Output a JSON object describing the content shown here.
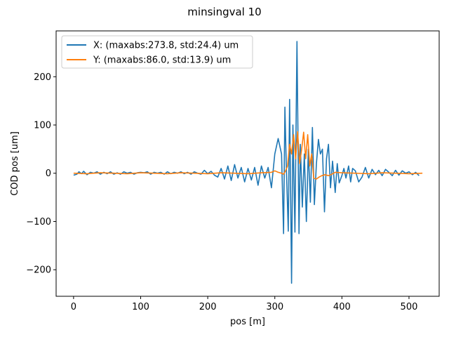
{
  "chart_data": {
    "type": "line",
    "title": "minsingval 10",
    "xlabel": "pos [m]",
    "ylabel": "COD pos [um]",
    "xlim": [
      -26,
      545
    ],
    "ylim": [
      -255,
      295
    ],
    "xticks": [
      0,
      100,
      200,
      300,
      400,
      500
    ],
    "yticks": [
      -200,
      -100,
      0,
      100,
      200
    ],
    "xtick_labels": [
      "0",
      "100",
      "200",
      "300",
      "400",
      "500"
    ],
    "ytick_labels": [
      "−200",
      "−100",
      "0",
      "100",
      "200"
    ],
    "grid": false,
    "legend_position": "upper-left",
    "series": [
      {
        "name": "X: (maxabs:273.8, std:24.4) um",
        "color": "#1f77b4",
        "x": [
          0,
          5,
          8,
          12,
          15,
          20,
          25,
          30,
          35,
          40,
          45,
          50,
          55,
          60,
          65,
          70,
          75,
          80,
          85,
          90,
          95,
          100,
          105,
          110,
          115,
          120,
          125,
          130,
          135,
          140,
          145,
          150,
          155,
          160,
          165,
          170,
          175,
          180,
          185,
          190,
          195,
          200,
          205,
          210,
          215,
          220,
          225,
          230,
          235,
          240,
          245,
          250,
          255,
          260,
          265,
          270,
          275,
          280,
          285,
          290,
          295,
          300,
          305,
          310,
          313,
          315,
          317,
          320,
          322,
          325,
          327,
          330,
          333,
          336,
          338,
          341,
          344,
          347,
          350,
          353,
          356,
          359,
          362,
          365,
          368,
          371,
          374,
          377,
          380,
          383,
          386,
          390,
          393,
          396,
          400,
          403,
          406,
          410,
          413,
          416,
          420,
          425,
          430,
          435,
          440,
          445,
          450,
          455,
          460,
          465,
          470,
          475,
          480,
          485,
          490,
          495,
          500,
          505,
          510,
          515
        ],
        "y": [
          -4,
          -2,
          3,
          -1,
          4,
          -3,
          2,
          0,
          3,
          -2,
          2,
          -1,
          3,
          -2,
          1,
          -2,
          3,
          0,
          2,
          -2,
          1,
          2,
          1,
          3,
          -2,
          2,
          0,
          2,
          -2,
          3,
          -1,
          2,
          0,
          3,
          -1,
          2,
          -2,
          3,
          0,
          -2,
          6,
          -1,
          4,
          -4,
          -8,
          10,
          -12,
          15,
          -15,
          18,
          -10,
          12,
          -18,
          10,
          -14,
          12,
          -25,
          15,
          -10,
          12,
          -30,
          40,
          72,
          40,
          -125,
          137,
          20,
          -120,
          153,
          -228,
          100,
          -122,
          273,
          -125,
          60,
          -70,
          40,
          -100,
          50,
          -60,
          95,
          -65,
          20,
          70,
          40,
          50,
          -80,
          30,
          60,
          -30,
          25,
          -40,
          20,
          -20,
          -5,
          10,
          -10,
          15,
          -18,
          10,
          5,
          -18,
          -8,
          12,
          -10,
          8,
          -3,
          6,
          -5,
          8,
          2,
          -5,
          6,
          -4,
          5,
          0,
          3,
          -3,
          2,
          -5
        ]
      },
      {
        "name": "Y: (maxabs:86.0, std:13.9) um",
        "color": "#ff7f0e",
        "x": [
          0,
          20,
          40,
          60,
          80,
          100,
          120,
          140,
          160,
          180,
          200,
          220,
          240,
          260,
          280,
          295,
          300,
          305,
          310,
          313,
          316,
          319,
          322,
          325,
          328,
          331,
          334,
          337,
          340,
          343,
          346,
          349,
          352,
          355,
          358,
          362,
          366,
          370,
          375,
          380,
          385,
          390,
          400,
          420,
          440,
          460,
          480,
          500,
          520
        ],
        "y": [
          0,
          -1,
          1,
          0,
          -1,
          1,
          0,
          -1,
          1,
          0,
          -1,
          1,
          0,
          -1,
          1,
          2,
          5,
          2,
          0,
          -2,
          5,
          15,
          60,
          40,
          80,
          30,
          86,
          20,
          50,
          85,
          30,
          80,
          15,
          40,
          -10,
          -12,
          -8,
          -5,
          -3,
          -5,
          -2,
          2,
          1,
          0,
          -1,
          1,
          0,
          -1,
          0
        ]
      }
    ]
  }
}
